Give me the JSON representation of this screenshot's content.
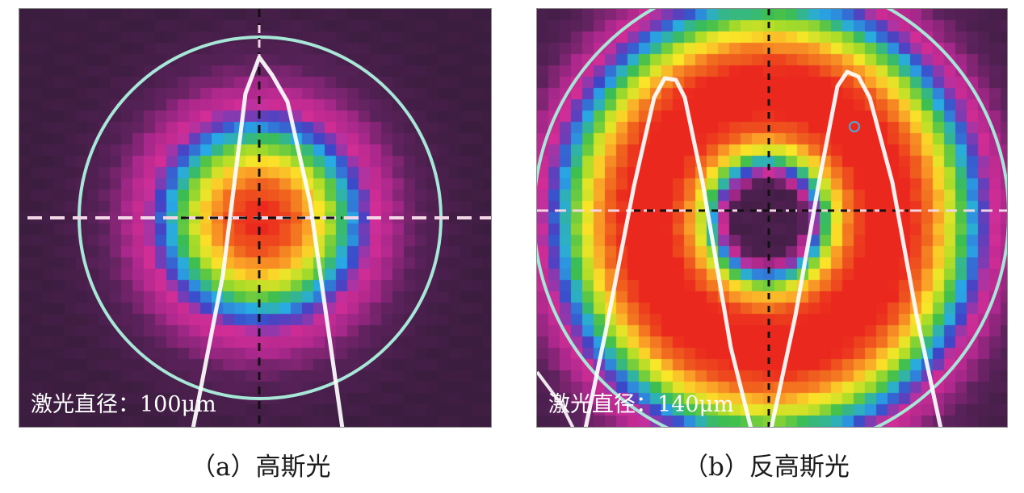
{
  "panels": [
    {
      "id": "a",
      "diameter_text": "激光直径：100μm",
      "caption": "（a）高斯光",
      "profile": "gaussian",
      "beam_diameter_um": 100
    },
    {
      "id": "b",
      "diameter_text": "激光直径：140μm",
      "caption": "（b）反高斯光",
      "profile": "inverse-gaussian",
      "beam_diameter_um": 140
    }
  ],
  "colors": {
    "background": "#3b1d3f",
    "circle": "#a8e6d8",
    "profile_line": "#ffffff",
    "crosshair_dark": "#111111",
    "crosshair_light": "#f2d6e6"
  }
}
